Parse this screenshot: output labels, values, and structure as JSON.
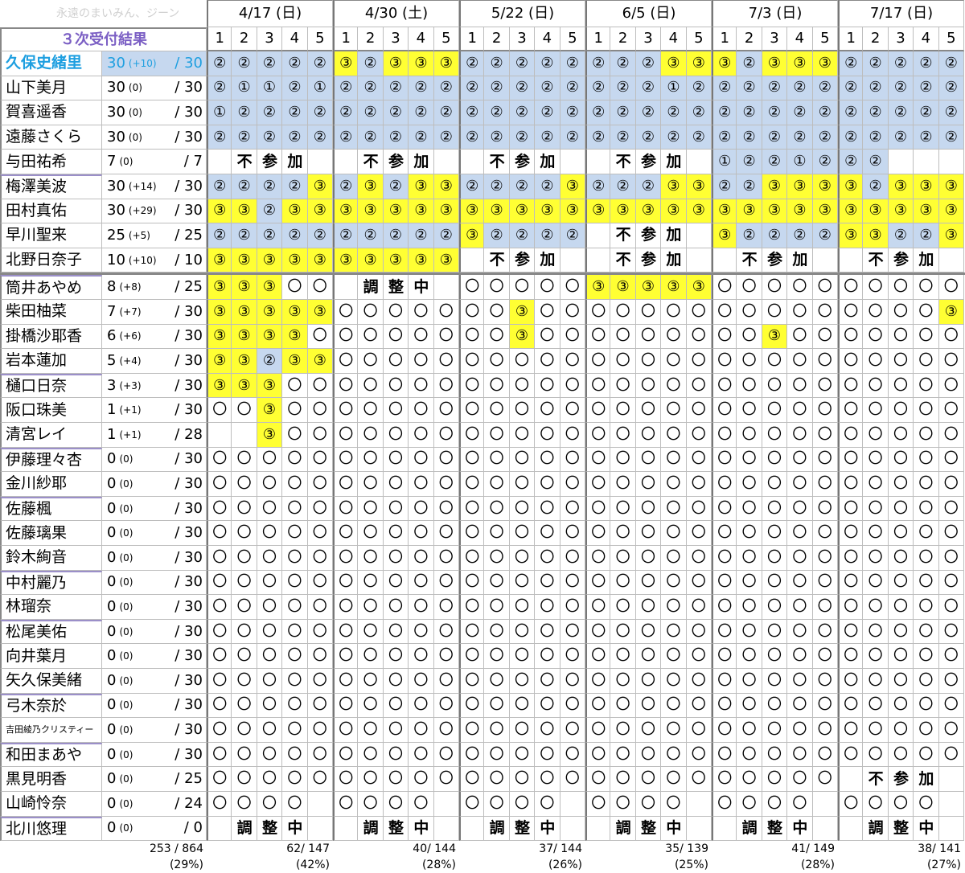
{
  "watermark": "永遠のまいみん、ジーン",
  "title": "３次受付結果",
  "dates": [
    "4/17 (日)",
    "4/30 (土)",
    "5/22 (日)",
    "6/5 (日)",
    "7/3 (日)",
    "7/17 (日)"
  ],
  "parts": [
    "1",
    "2",
    "3",
    "4",
    "5"
  ],
  "banners": {
    "fusanka": [
      "不",
      "参",
      "加"
    ],
    "chousei": [
      "調",
      "整",
      "中"
    ]
  },
  "members": [
    {
      "name": "久保史緒里",
      "score": "30",
      "delta": "(+10)",
      "total": "30",
      "cells": [
        "2b",
        "2b",
        "2b",
        "2b",
        "2b",
        "3y",
        "2b",
        "3y",
        "3y",
        "3y",
        "2b",
        "2b",
        "2b",
        "2b",
        "2b",
        "2b",
        "2b",
        "2b",
        "3y",
        "3y",
        "3y",
        "2b",
        "3y",
        "3y",
        "3y",
        "2b",
        "2b",
        "2b",
        "2b",
        "2b"
      ],
      "banners": []
    },
    {
      "name": "山下美月",
      "score": "30",
      "delta": "(0)",
      "total": "30",
      "cells": [
        "2b",
        "1b",
        "1b",
        "2b",
        "1b",
        "2b",
        "2b",
        "2b",
        "2b",
        "2b",
        "2b",
        "2b",
        "2b",
        "2b",
        "2b",
        "2b",
        "2b",
        "2b",
        "1b",
        "2b",
        "2b",
        "2b",
        "2b",
        "2b",
        "2b",
        "2b",
        "2b",
        "2b",
        "2b",
        "2b"
      ],
      "banners": []
    },
    {
      "name": "賀喜遥香",
      "score": "30",
      "delta": "(0)",
      "total": "30",
      "cells": [
        "1b",
        "2b",
        "2b",
        "2b",
        "2b",
        "2b",
        "2b",
        "2b",
        "2b",
        "2b",
        "2b",
        "2b",
        "2b",
        "2b",
        "2b",
        "2b",
        "2b",
        "2b",
        "2b",
        "2b",
        "2b",
        "2b",
        "2b",
        "2b",
        "2b",
        "2b",
        "2b",
        "2b",
        "2b",
        "2b"
      ],
      "banners": []
    },
    {
      "name": "遠藤さくら",
      "score": "30",
      "delta": "(0)",
      "total": "30",
      "cells": [
        "2b",
        "2b",
        "2b",
        "2b",
        "2b",
        "2b",
        "2b",
        "2b",
        "2b",
        "2b",
        "2b",
        "2b",
        "2b",
        "2b",
        "2b",
        "2b",
        "2b",
        "2b",
        "2b",
        "2b",
        "2b",
        "2b",
        "2b",
        "2b",
        "2b",
        "2b",
        "2b",
        "2b",
        "2b",
        "2b"
      ],
      "banners": []
    },
    {
      "name": "与田祐希",
      "score": "7",
      "delta": "(0)",
      "total": "7",
      "cells": [
        "x",
        "x",
        "x",
        "x",
        "x",
        "x",
        "x",
        "x",
        "x",
        "x",
        "x",
        "x",
        "x",
        "x",
        "x",
        "x",
        "x",
        "x",
        "x",
        "x",
        "1b",
        "2b",
        "2b",
        "1b",
        "2b",
        "2b",
        "2b",
        "x",
        "x",
        "x"
      ],
      "banners": [
        {
          "b": 0,
          "t": "fusanka"
        },
        {
          "b": 1,
          "t": "fusanka"
        },
        {
          "b": 2,
          "t": "fusanka"
        },
        {
          "b": 3,
          "t": "fusanka"
        }
      ]
    },
    {
      "name": "梅澤美波",
      "score": "30",
      "delta": "(+14)",
      "total": "30",
      "cells": [
        "2b",
        "2b",
        "2b",
        "2b",
        "3y",
        "2b",
        "3y",
        "2b",
        "3y",
        "3y",
        "2b",
        "2b",
        "2b",
        "2b",
        "3y",
        "2b",
        "2b",
        "2b",
        "3y",
        "3y",
        "2b",
        "2b",
        "3y",
        "3y",
        "3y",
        "3y",
        "2b",
        "3y",
        "3y",
        "3y"
      ],
      "banners": []
    },
    {
      "name": "田村真佑",
      "score": "30",
      "delta": "(+29)",
      "total": "30",
      "cells": [
        "3y",
        "3y",
        "2b",
        "3y",
        "3y",
        "3y",
        "3y",
        "3y",
        "3y",
        "3y",
        "3y",
        "3y",
        "3y",
        "3y",
        "3y",
        "3y",
        "3y",
        "3y",
        "3y",
        "3y",
        "3y",
        "3y",
        "3y",
        "3y",
        "3y",
        "3y",
        "3y",
        "3y",
        "3y",
        "3y"
      ],
      "banners": []
    },
    {
      "name": "早川聖来",
      "score": "25",
      "delta": "(+5)",
      "total": "25",
      "cells": [
        "2b",
        "2b",
        "2b",
        "2b",
        "2b",
        "2b",
        "2b",
        "2b",
        "2b",
        "2b",
        "3y",
        "2b",
        "2b",
        "2b",
        "2b",
        "x",
        "x",
        "x",
        "x",
        "x",
        "3y",
        "2b",
        "2b",
        "2b",
        "2b",
        "3y",
        "3y",
        "2b",
        "2b",
        "3y"
      ],
      "banners": [
        {
          "b": 3,
          "t": "fusanka"
        }
      ]
    },
    {
      "name": "北野日奈子",
      "score": "10",
      "delta": "(+10)",
      "total": "10",
      "cells": [
        "3y",
        "3y",
        "3y",
        "3y",
        "3y",
        "3y",
        "3y",
        "3y",
        "3y",
        "3y",
        "x",
        "x",
        "x",
        "x",
        "x",
        "x",
        "x",
        "x",
        "x",
        "x",
        "x",
        "x",
        "x",
        "x",
        "x",
        "x",
        "x",
        "x",
        "x",
        "x"
      ],
      "banners": [
        {
          "b": 2,
          "t": "fusanka"
        },
        {
          "b": 3,
          "t": "fusanka"
        },
        {
          "b": 4,
          "t": "fusanka"
        },
        {
          "b": 5,
          "t": "fusanka"
        }
      ]
    },
    {
      "name": "筒井あやめ",
      "score": "8",
      "delta": "(+8)",
      "total": "25",
      "cells": [
        "3y",
        "3y",
        "3y",
        "o",
        "o",
        "x",
        "x",
        "x",
        "x",
        "x",
        "o",
        "o",
        "o",
        "o",
        "o",
        "3y",
        "3y",
        "3y",
        "3y",
        "3y",
        "o",
        "o",
        "o",
        "o",
        "o",
        "o",
        "o",
        "o",
        "o",
        "o"
      ],
      "banners": [
        {
          "b": 1,
          "t": "chousei"
        }
      ]
    },
    {
      "name": "柴田柚菜",
      "score": "7",
      "delta": "(+7)",
      "total": "30",
      "cells": [
        "3y",
        "3y",
        "3y",
        "3y",
        "3y",
        "o",
        "o",
        "o",
        "o",
        "o",
        "o",
        "o",
        "3y",
        "o",
        "o",
        "o",
        "o",
        "o",
        "o",
        "o",
        "o",
        "o",
        "o",
        "o",
        "o",
        "o",
        "o",
        "o",
        "o",
        "3y"
      ],
      "banners": []
    },
    {
      "name": "掛橋沙耶香",
      "score": "6",
      "delta": "(+6)",
      "total": "30",
      "cells": [
        "3y",
        "3y",
        "3y",
        "3y",
        "o",
        "o",
        "o",
        "o",
        "o",
        "o",
        "o",
        "o",
        "3y",
        "o",
        "o",
        "o",
        "o",
        "o",
        "o",
        "o",
        "o",
        "o",
        "3y",
        "o",
        "o",
        "o",
        "o",
        "o",
        "o",
        "o"
      ],
      "banners": []
    },
    {
      "name": "岩本蓮加",
      "score": "5",
      "delta": "(+4)",
      "total": "30",
      "cells": [
        "3y",
        "3y",
        "2b",
        "3y",
        "3y",
        "o",
        "o",
        "o",
        "o",
        "o",
        "o",
        "o",
        "o",
        "o",
        "o",
        "o",
        "o",
        "o",
        "o",
        "o",
        "o",
        "o",
        "o",
        "o",
        "o",
        "o",
        "o",
        "o",
        "o",
        "o"
      ],
      "banners": []
    },
    {
      "name": "樋口日奈",
      "score": "3",
      "delta": "(+3)",
      "total": "30",
      "cells": [
        "3y",
        "3y",
        "3y",
        "o",
        "o",
        "o",
        "o",
        "o",
        "o",
        "o",
        "o",
        "o",
        "o",
        "o",
        "o",
        "o",
        "o",
        "o",
        "o",
        "o",
        "o",
        "o",
        "o",
        "o",
        "o",
        "o",
        "o",
        "o",
        "o",
        "o"
      ],
      "banners": []
    },
    {
      "name": "阪口珠美",
      "score": "1",
      "delta": "(+1)",
      "total": "30",
      "cells": [
        "o",
        "o",
        "3y",
        "o",
        "o",
        "o",
        "o",
        "o",
        "o",
        "o",
        "o",
        "o",
        "o",
        "o",
        "o",
        "o",
        "o",
        "o",
        "o",
        "o",
        "o",
        "o",
        "o",
        "o",
        "o",
        "o",
        "o",
        "o",
        "o",
        "o"
      ],
      "banners": []
    },
    {
      "name": "清宮レイ",
      "score": "1",
      "delta": "(+1)",
      "total": "28",
      "cells": [
        "x",
        "x",
        "3y",
        "o",
        "o",
        "o",
        "o",
        "o",
        "o",
        "o",
        "o",
        "o",
        "o",
        "o",
        "o",
        "o",
        "o",
        "o",
        "o",
        "o",
        "o",
        "o",
        "o",
        "o",
        "o",
        "o",
        "o",
        "o",
        "o",
        "o"
      ],
      "banners": []
    },
    {
      "name": "伊藤理々杏",
      "score": "0",
      "delta": "(0)",
      "total": "30",
      "cells": [
        "o",
        "o",
        "o",
        "o",
        "o",
        "o",
        "o",
        "o",
        "o",
        "o",
        "o",
        "o",
        "o",
        "o",
        "o",
        "o",
        "o",
        "o",
        "o",
        "o",
        "o",
        "o",
        "o",
        "o",
        "o",
        "o",
        "o",
        "o",
        "o",
        "o"
      ],
      "banners": []
    },
    {
      "name": "金川紗耶",
      "score": "0",
      "delta": "(0)",
      "total": "30",
      "cells": [
        "o",
        "o",
        "o",
        "o",
        "o",
        "o",
        "o",
        "o",
        "o",
        "o",
        "o",
        "o",
        "o",
        "o",
        "o",
        "o",
        "o",
        "o",
        "o",
        "o",
        "o",
        "o",
        "o",
        "o",
        "o",
        "o",
        "o",
        "o",
        "o",
        "o"
      ],
      "banners": []
    },
    {
      "name": "佐藤楓",
      "score": "0",
      "delta": "(0)",
      "total": "30",
      "cells": [
        "o",
        "o",
        "o",
        "o",
        "o",
        "o",
        "o",
        "o",
        "o",
        "o",
        "o",
        "o",
        "o",
        "o",
        "o",
        "o",
        "o",
        "o",
        "o",
        "o",
        "o",
        "o",
        "o",
        "o",
        "o",
        "o",
        "o",
        "o",
        "o",
        "o"
      ],
      "banners": []
    },
    {
      "name": "佐藤璃果",
      "score": "0",
      "delta": "(0)",
      "total": "30",
      "cells": [
        "o",
        "o",
        "o",
        "o",
        "o",
        "o",
        "o",
        "o",
        "o",
        "o",
        "o",
        "o",
        "o",
        "o",
        "o",
        "o",
        "o",
        "o",
        "o",
        "o",
        "o",
        "o",
        "o",
        "o",
        "o",
        "o",
        "o",
        "o",
        "o",
        "o"
      ],
      "banners": []
    },
    {
      "name": "鈴木絢音",
      "score": "0",
      "delta": "(0)",
      "total": "30",
      "cells": [
        "o",
        "o",
        "o",
        "o",
        "o",
        "o",
        "o",
        "o",
        "o",
        "o",
        "o",
        "o",
        "o",
        "o",
        "o",
        "o",
        "o",
        "o",
        "o",
        "o",
        "o",
        "o",
        "o",
        "o",
        "o",
        "o",
        "o",
        "o",
        "o",
        "o"
      ],
      "banners": []
    },
    {
      "name": "中村麗乃",
      "score": "0",
      "delta": "(0)",
      "total": "30",
      "cells": [
        "o",
        "o",
        "o",
        "o",
        "o",
        "o",
        "o",
        "o",
        "o",
        "o",
        "o",
        "o",
        "o",
        "o",
        "o",
        "o",
        "o",
        "o",
        "o",
        "o",
        "o",
        "o",
        "o",
        "o",
        "o",
        "o",
        "o",
        "o",
        "o",
        "o"
      ],
      "banners": []
    },
    {
      "name": "林瑠奈",
      "score": "0",
      "delta": "(0)",
      "total": "30",
      "cells": [
        "o",
        "o",
        "o",
        "o",
        "o",
        "o",
        "o",
        "o",
        "o",
        "o",
        "o",
        "o",
        "o",
        "o",
        "o",
        "o",
        "o",
        "o",
        "o",
        "o",
        "o",
        "o",
        "o",
        "o",
        "o",
        "o",
        "o",
        "o",
        "o",
        "o"
      ],
      "banners": []
    },
    {
      "name": "松尾美佑",
      "score": "0",
      "delta": "(0)",
      "total": "30",
      "cells": [
        "o",
        "o",
        "o",
        "o",
        "o",
        "o",
        "o",
        "o",
        "o",
        "o",
        "o",
        "o",
        "o",
        "o",
        "o",
        "o",
        "o",
        "o",
        "o",
        "o",
        "o",
        "o",
        "o",
        "o",
        "o",
        "o",
        "o",
        "o",
        "o",
        "o"
      ],
      "banners": []
    },
    {
      "name": "向井葉月",
      "score": "0",
      "delta": "(0)",
      "total": "30",
      "cells": [
        "o",
        "o",
        "o",
        "o",
        "o",
        "o",
        "o",
        "o",
        "o",
        "o",
        "o",
        "o",
        "o",
        "o",
        "o",
        "o",
        "o",
        "o",
        "o",
        "o",
        "o",
        "o",
        "o",
        "o",
        "o",
        "o",
        "o",
        "o",
        "o",
        "o"
      ],
      "banners": []
    },
    {
      "name": "矢久保美緒",
      "score": "0",
      "delta": "(0)",
      "total": "30",
      "cells": [
        "o",
        "o",
        "o",
        "o",
        "o",
        "o",
        "o",
        "o",
        "o",
        "o",
        "o",
        "o",
        "o",
        "o",
        "o",
        "o",
        "o",
        "o",
        "o",
        "o",
        "o",
        "o",
        "o",
        "o",
        "o",
        "o",
        "o",
        "o",
        "o",
        "o"
      ],
      "banners": []
    },
    {
      "name": "弓木奈於",
      "score": "0",
      "delta": "(0)",
      "total": "30",
      "cells": [
        "o",
        "o",
        "o",
        "o",
        "o",
        "o",
        "o",
        "o",
        "o",
        "o",
        "o",
        "o",
        "o",
        "o",
        "o",
        "o",
        "o",
        "o",
        "o",
        "o",
        "o",
        "o",
        "o",
        "o",
        "o",
        "o",
        "o",
        "o",
        "o",
        "o"
      ],
      "banners": []
    },
    {
      "name": "吉田綾乃クリスティー",
      "score": "0",
      "delta": "(0)",
      "total": "30",
      "cells": [
        "o",
        "o",
        "o",
        "o",
        "o",
        "o",
        "o",
        "o",
        "o",
        "o",
        "o",
        "o",
        "o",
        "o",
        "o",
        "o",
        "o",
        "o",
        "o",
        "o",
        "o",
        "o",
        "o",
        "o",
        "o",
        "o",
        "o",
        "o",
        "o",
        "o"
      ],
      "banners": []
    },
    {
      "name": "和田まあや",
      "score": "0",
      "delta": "(0)",
      "total": "30",
      "cells": [
        "o",
        "o",
        "o",
        "o",
        "o",
        "o",
        "o",
        "o",
        "o",
        "o",
        "o",
        "o",
        "o",
        "o",
        "o",
        "o",
        "o",
        "o",
        "o",
        "o",
        "o",
        "o",
        "o",
        "o",
        "o",
        "o",
        "o",
        "o",
        "o",
        "o"
      ],
      "banners": []
    },
    {
      "name": "黒見明香",
      "score": "0",
      "delta": "(0)",
      "total": "25",
      "cells": [
        "o",
        "o",
        "o",
        "o",
        "o",
        "o",
        "o",
        "o",
        "o",
        "o",
        "o",
        "o",
        "o",
        "o",
        "o",
        "o",
        "o",
        "o",
        "o",
        "o",
        "o",
        "o",
        "o",
        "o",
        "o",
        "x",
        "x",
        "x",
        "x",
        "x"
      ],
      "banners": [
        {
          "b": 5,
          "t": "fusanka"
        }
      ]
    },
    {
      "name": "山崎怜奈",
      "score": "0",
      "delta": "(0)",
      "total": "24",
      "cells": [
        "o",
        "o",
        "o",
        "o",
        "x",
        "o",
        "o",
        "o",
        "o",
        "x",
        "o",
        "o",
        "o",
        "o",
        "x",
        "o",
        "o",
        "o",
        "o",
        "x",
        "o",
        "o",
        "o",
        "o",
        "x",
        "o",
        "o",
        "o",
        "o",
        "x"
      ],
      "banners": []
    },
    {
      "name": "北川悠理",
      "score": "0",
      "delta": "(0)",
      "total": "0",
      "cells": [
        "x",
        "x",
        "x",
        "x",
        "x",
        "x",
        "x",
        "x",
        "x",
        "x",
        "x",
        "x",
        "x",
        "x",
        "x",
        "x",
        "x",
        "x",
        "x",
        "x",
        "x",
        "x",
        "x",
        "x",
        "x",
        "x",
        "x",
        "x",
        "x",
        "x"
      ],
      "banners": [
        {
          "b": 0,
          "t": "chousei"
        },
        {
          "b": 1,
          "t": "chousei"
        },
        {
          "b": 2,
          "t": "chousei"
        },
        {
          "b": 3,
          "t": "chousei"
        },
        {
          "b": 4,
          "t": "chousei"
        },
        {
          "b": 5,
          "t": "chousei"
        }
      ]
    }
  ],
  "footer": {
    "overall": {
      "count": "253 / 864",
      "pct": "(29%)"
    },
    "blocks": [
      {
        "count": "62/ 147",
        "pct": "(42%)"
      },
      {
        "count": "40/ 144",
        "pct": "(28%)"
      },
      {
        "count": "37/ 144",
        "pct": "(26%)"
      },
      {
        "count": "35/ 139",
        "pct": "(25%)"
      },
      {
        "count": "41/ 149",
        "pct": "(28%)"
      },
      {
        "count": "38/ 141",
        "pct": "(27%)"
      }
    ]
  },
  "symbols": {
    "1": "①",
    "2": "②",
    "3": "③",
    "o": "〇"
  },
  "colors": {
    "applied_blue": "#c6d8ef",
    "won_yellow": "#ffff33",
    "title_purple": "#7b5fc4",
    "highlight_cyan": "#1e9fe0"
  }
}
